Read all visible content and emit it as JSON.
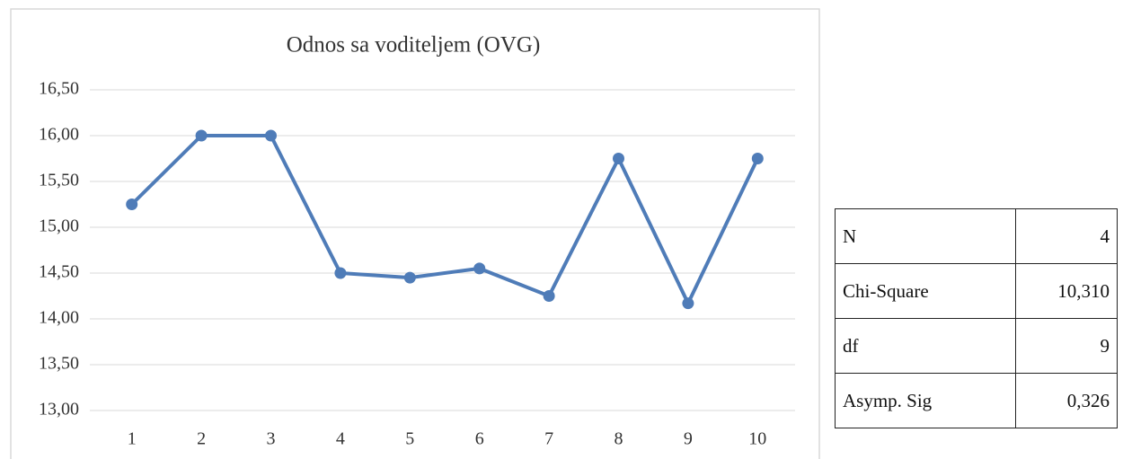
{
  "chart_data": {
    "type": "line",
    "title": "Odnos sa voditeljem (OVG)",
    "categories": [
      "1",
      "2",
      "3",
      "4",
      "5",
      "6",
      "7",
      "8",
      "9",
      "10"
    ],
    "series": [
      {
        "color": "#4f7cb8",
        "values": [
          15.25,
          16.0,
          16.0,
          14.5,
          14.45,
          14.55,
          14.25,
          15.75,
          14.17,
          15.75
        ]
      }
    ],
    "ylim": [
      13,
      16.5
    ],
    "yticks": [
      {
        "value": 13,
        "label": "13,00"
      },
      {
        "value": 13.5,
        "label": "13,50"
      },
      {
        "value": 14,
        "label": "14,00"
      },
      {
        "value": 14.5,
        "label": "14,50"
      },
      {
        "value": 15,
        "label": "15,00"
      },
      {
        "value": 15.5,
        "label": "15,50"
      },
      {
        "value": 16,
        "label": "16,00"
      },
      {
        "value": 16.5,
        "label": "16,50"
      }
    ],
    "grid": true
  },
  "table": {
    "rows": [
      [
        "N",
        "4"
      ],
      [
        "Chi-Square",
        "10,310"
      ],
      [
        "df",
        "9"
      ],
      [
        "Asymp. Sig",
        "0,326"
      ]
    ]
  }
}
